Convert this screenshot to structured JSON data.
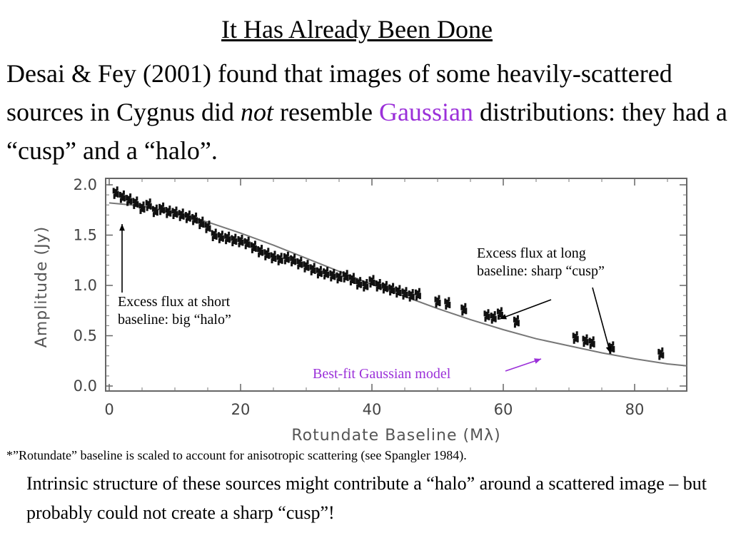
{
  "slide": {
    "title": "It Has Already Been Done",
    "intro_part1": "Desai & Fey (2001) found that images of some heavily-scattered sources in Cygnus did ",
    "intro_em": "not",
    "intro_part2": " resemble ",
    "intro_accent": "Gaussian",
    "intro_part3": " distributions: they had a “cusp” and a “halo”.",
    "footnote": "*”Rotundate” baseline is scaled to account for anisotropic scattering (see Spangler 1984).",
    "closing": "Intrinsic structure of these sources might contribute a “halo” around a scattered image – but probably could not create a sharp “cusp”!",
    "accent_color": "#9b30d9"
  },
  "annotations": {
    "halo_line1": "Excess flux at short",
    "halo_line2": "baseline: big “halo”",
    "cusp_line1": "Excess flux at long",
    "cusp_line2": "baseline: sharp “cusp”",
    "model_label": "Best-fit Gaussian model"
  },
  "chart_data": {
    "type": "scatter",
    "xlabel": "Rotundate Baseline (Mλ)",
    "ylabel": "Amplitude (Jy)",
    "xlim": [
      0,
      88
    ],
    "ylim": [
      0,
      2.05
    ],
    "xticks": [
      0,
      20,
      40,
      60,
      80
    ],
    "yticks": [
      0.0,
      0.5,
      1.0,
      1.5,
      2.0
    ],
    "xtick_labels": [
      "0",
      "20",
      "40",
      "60",
      "80"
    ],
    "ytick_labels": [
      "0.0",
      "0.5",
      "1.0",
      "1.5",
      "2.0"
    ],
    "grid": false,
    "series": [
      {
        "type": "scatter",
        "x": [
          1.0,
          2.0,
          3.0,
          4.0,
          5.0,
          6.0,
          7.0,
          8.0,
          9.0,
          10.0,
          11.0,
          12.0,
          13.0,
          14.0,
          15.0,
          16.0,
          17.0,
          18.0,
          19.0,
          20.0,
          21.0,
          22.0,
          23.0,
          24.0,
          25.0,
          26.0,
          27.0,
          28.0,
          29.0,
          30.0,
          31.0,
          32.0,
          33.0,
          34.0,
          35.0,
          36.0,
          37.0,
          38.0,
          39.0,
          40.0,
          41.0,
          42.0,
          43.0,
          44.0,
          45.0,
          46.0,
          47.0,
          50.0,
          51.5,
          54.0,
          57.5,
          58.5,
          59.5,
          62.0,
          71.0,
          72.5,
          73.5,
          76.5,
          84.0
        ],
        "y": [
          1.92,
          1.88,
          1.85,
          1.82,
          1.77,
          1.8,
          1.74,
          1.76,
          1.73,
          1.72,
          1.7,
          1.68,
          1.66,
          1.62,
          1.58,
          1.5,
          1.48,
          1.47,
          1.45,
          1.44,
          1.42,
          1.38,
          1.34,
          1.31,
          1.28,
          1.26,
          1.27,
          1.25,
          1.22,
          1.19,
          1.16,
          1.13,
          1.12,
          1.1,
          1.08,
          1.09,
          1.06,
          1.02,
          1.0,
          1.04,
          1.0,
          0.98,
          0.96,
          0.94,
          0.92,
          0.9,
          0.91,
          0.84,
          0.82,
          0.76,
          0.7,
          0.68,
          0.72,
          0.64,
          0.48,
          0.45,
          0.43,
          0.38,
          0.32
        ]
      },
      {
        "type": "line",
        "x": [
          0,
          5,
          10,
          15,
          20,
          25,
          30,
          35,
          40,
          45,
          50,
          55,
          60,
          65,
          70,
          75,
          80,
          85,
          88
        ],
        "y": [
          1.82,
          1.79,
          1.72,
          1.63,
          1.52,
          1.4,
          1.27,
          1.14,
          1.01,
          0.89,
          0.77,
          0.66,
          0.56,
          0.47,
          0.4,
          0.33,
          0.27,
          0.22,
          0.2
        ]
      }
    ]
  }
}
